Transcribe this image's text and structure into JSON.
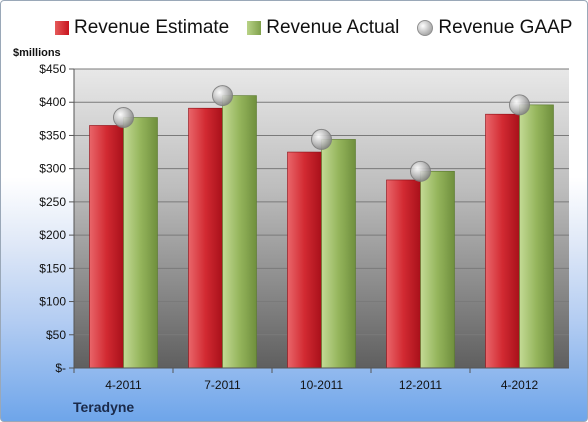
{
  "chart_data": {
    "type": "bar",
    "units_label": "$millions",
    "company": "Teradyne",
    "categories": [
      "4-2011",
      "7-2011",
      "10-2011",
      "12-2011",
      "4-2012"
    ],
    "ylim": [
      0,
      450
    ],
    "yticks": [
      {
        "value": 0,
        "label": "$-"
      },
      {
        "value": 50,
        "label": "$50"
      },
      {
        "value": 100,
        "label": "$100"
      },
      {
        "value": 150,
        "label": "$150"
      },
      {
        "value": 200,
        "label": "$200"
      },
      {
        "value": 250,
        "label": "$250"
      },
      {
        "value": 300,
        "label": "$300"
      },
      {
        "value": 350,
        "label": "$350"
      },
      {
        "value": 400,
        "label": "$400"
      },
      {
        "value": 450,
        "label": "$450"
      }
    ],
    "grid": true,
    "legend_position": "top",
    "series": [
      {
        "name": "Revenue Estimate",
        "type": "bar",
        "color": "#d21f2a",
        "values": [
          365,
          391,
          325,
          283,
          382
        ]
      },
      {
        "name": "Revenue Actual",
        "type": "bar",
        "color": "#92b45a",
        "values": [
          377,
          410,
          344,
          296,
          396
        ]
      },
      {
        "name": "Revenue GAAP",
        "type": "marker",
        "color": "#b0b0b0",
        "values": [
          377,
          410,
          344,
          296,
          396
        ]
      }
    ]
  }
}
